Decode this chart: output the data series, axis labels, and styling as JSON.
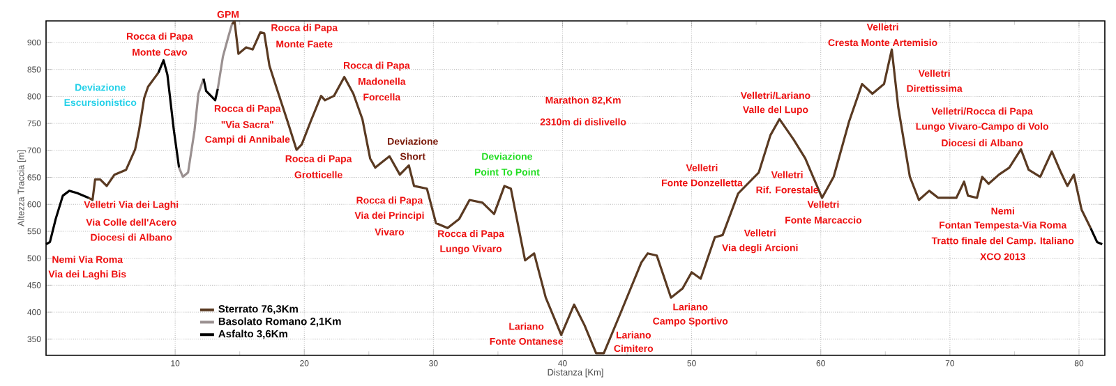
{
  "chart_data": {
    "type": "line",
    "xlabel": "Distanza [Km]",
    "ylabel": "Altezza Traccia [m]",
    "xlim": [
      0,
      82
    ],
    "ylim": [
      320,
      940
    ],
    "xticks": [
      10,
      20,
      30,
      40,
      50,
      60,
      70,
      80
    ],
    "yticks": [
      350,
      400,
      450,
      500,
      550,
      600,
      650,
      700,
      750,
      800,
      850,
      900
    ],
    "grid": true,
    "legend": "bottom left",
    "marker": "none",
    "line_style": "solid",
    "series": [
      {
        "name": "Sterrato 76,3Km",
        "color": "#5a3a22",
        "x": [
          3.3,
          3.6,
          3.8,
          4.2,
          4.7,
          5.3,
          6.2,
          6.9,
          7.2,
          7.6,
          7.9,
          8.7,
          null,
          14.4,
          14.6,
          14.9,
          15.5,
          16.0,
          16.6,
          16.9,
          17.3,
          18.0,
          18.7,
          19.4,
          19.8,
          20.5,
          21.3,
          21.6,
          22.3,
          23.1,
          23.8,
          24.5,
          25.1,
          25.5,
          25.9,
          26.6,
          27.4,
          28.1,
          28.5,
          29.5,
          30.2,
          31.1,
          32.0,
          32.8,
          33.8,
          34.7,
          35.5,
          36.0,
          37.1,
          37.8,
          38.7,
          39.9,
          40.9,
          41.7,
          42.6,
          43.2,
          44.4,
          46.1,
          46.6,
          47.3,
          48.4,
          49.3,
          50.0,
          50.7,
          51.8,
          52.4,
          53.6,
          55.2,
          56.1,
          56.8,
          57.9,
          58.8,
          60.1,
          61.0,
          62.2,
          63.2,
          64.0,
          64.9,
          65.5,
          66.0,
          66.9,
          67.6,
          68.4,
          69.1,
          70.5,
          71.1,
          71.4,
          72.1,
          72.5,
          73.0,
          73.8,
          74.6,
          75.5,
          76.1,
          77.0,
          77.9,
          78.6,
          79.1,
          79.6,
          80.2,
          80.9
        ],
        "values": [
          612,
          608,
          646,
          646,
          634,
          655,
          664,
          702,
          737,
          797,
          818,
          844,
          null,
          934,
          939,
          879,
          891,
          887,
          919,
          917,
          857,
          805,
          754,
          701,
          711,
          754,
          801,
          793,
          801,
          836,
          805,
          758,
          685,
          668,
          676,
          689,
          655,
          672,
          634,
          629,
          565,
          556,
          573,
          608,
          603,
          582,
          634,
          629,
          496,
          509,
          427,
          358,
          414,
          376,
          324,
          324,
          393,
          492,
          509,
          505,
          427,
          444,
          474,
          462,
          539,
          543,
          620,
          659,
          728,
          758,
          720,
          685,
          612,
          651,
          754,
          823,
          805,
          823,
          887,
          780,
          651,
          608,
          625,
          612,
          612,
          642,
          616,
          612,
          651,
          638,
          655,
          668,
          702,
          664,
          651,
          698,
          659,
          634,
          655,
          590,
          556
        ]
      },
      {
        "name": "Basolato Romano 2,1Km",
        "color": "#9a9090",
        "x": [
          10.3,
          10.6,
          11.0,
          11.5,
          11.8,
          12.2,
          null,
          13.3,
          13.7,
          14.1,
          14.4
        ],
        "values": [
          668,
          651,
          659,
          737,
          805,
          833,
          null,
          814,
          874,
          909,
          934
        ]
      },
      {
        "name": "Asfalto 3,6Km",
        "color": "#000000",
        "x": [
          0,
          0.3,
          0.75,
          1.3,
          1.8,
          2.4,
          3.3,
          null,
          8.7,
          9.1,
          9.4,
          9.9,
          10.3,
          null,
          12.2,
          12.4,
          13.1,
          13.3,
          null,
          80.9,
          81.4,
          81.8
        ],
        "values": [
          526,
          530,
          573,
          616,
          625,
          621,
          612,
          null,
          844,
          867,
          840,
          737,
          668,
          null,
          833,
          810,
          793,
          814,
          null,
          556,
          530,
          526
        ]
      }
    ],
    "annotations": [
      "Nemi Via Roma",
      "Via dei Laghi Bis",
      "Velletri Via dei Laghi",
      "Via Colle dell'Acero",
      "Diocesi di Albano",
      "Deviazione",
      "Escursionistico",
      "Rocca di Papa",
      "Monte Cavo",
      "GPM",
      "Rocca di Papa",
      "Monte Faete",
      "Rocca di Papa",
      "\"Via Sacra\"",
      "Campi di Annibale",
      "Rocca di Papa",
      "Grotticelle",
      "Rocca di Papa",
      "Madonella",
      "Forcella",
      "Deviazione",
      "Short",
      "Rocca di Papa",
      "Via dei Principi",
      "Vivaro",
      "Deviazione",
      "Point To Point",
      "Rocca di Papa",
      "Lungo Vivaro",
      "Marathon 82,Km",
      "2310m di dislivello",
      "Lariano",
      "Fonte Ontanese",
      "Lariano",
      "Cimitero",
      "Lariano",
      "Campo Sportivo",
      "Velletri",
      "Fonte Donzelletta",
      "Velletri/Lariano",
      "Valle del Lupo",
      "Velletri",
      "Rif. Forestale",
      "Velletri",
      "Via degli Arcioni",
      "Velletri",
      "Fonte Marcaccio",
      "Velletri",
      "Cresta Monte Artemisio",
      "Velletri",
      "Direttissima",
      "Velletri/Rocca di Papa",
      "Lungo Vivaro-Campo di Volo",
      "Diocesi di Albano",
      "Nemi",
      "Fontan Tempesta-Via Roma",
      "Tratto finale del Camp. Italiano",
      "XCO 2013"
    ]
  }
}
